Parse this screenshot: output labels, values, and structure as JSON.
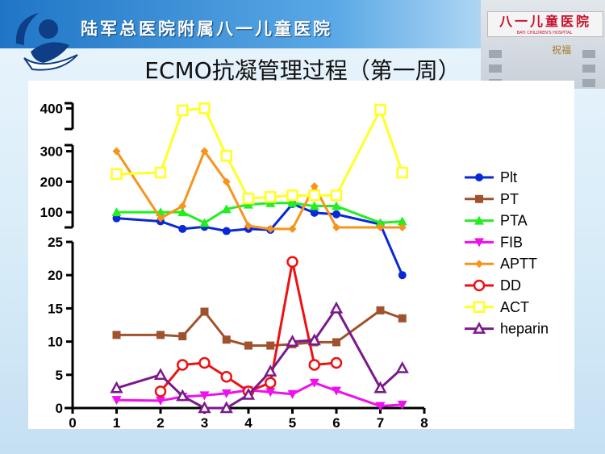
{
  "header": {
    "hospital_name": "陆军总医院附属八一儿童医院",
    "building_sign": "八一儿童医院",
    "building_sub": "BAYI CHILDREN'S HOSPITAL",
    "building_art": "祝福"
  },
  "slide": {
    "title": "ECMO抗凝管理过程（第一周）"
  },
  "chart_data": {
    "type": "line",
    "title": "",
    "xlabel": "",
    "ylabel": "",
    "xlim": [
      0,
      8
    ],
    "x_ticks": [
      "0",
      "1",
      "2",
      "3",
      "4",
      "5",
      "6",
      "7",
      "8"
    ],
    "y_segments": [
      {
        "range": [
          0,
          25
        ],
        "ticks": [
          "0",
          "5",
          "10",
          "15",
          "20",
          "25"
        ]
      },
      {
        "range": [
          50,
          320
        ],
        "ticks": [
          "100",
          "200",
          "300"
        ]
      },
      {
        "range": [
          370,
          420
        ],
        "ticks": [
          "400"
        ]
      }
    ],
    "legend_position": "right",
    "series": [
      {
        "name": "Plt",
        "color": "#0a28d6",
        "marker": "circle-filled",
        "points": [
          [
            1,
            80
          ],
          [
            2,
            70
          ],
          [
            2.5,
            45
          ],
          [
            3,
            52
          ],
          [
            3.5,
            38
          ],
          [
            4,
            45
          ],
          [
            4.5,
            42
          ],
          [
            5,
            127
          ],
          [
            5.5,
            98
          ],
          [
            6,
            93
          ],
          [
            7,
            60
          ],
          [
            7.5,
            20
          ]
        ]
      },
      {
        "name": "PT",
        "color": "#a0522d",
        "marker": "square-filled",
        "points": [
          [
            1,
            11
          ],
          [
            2,
            11
          ],
          [
            2.5,
            10.8
          ],
          [
            3,
            14.5
          ],
          [
            3.5,
            10.3
          ],
          [
            4,
            9.4
          ],
          [
            4.5,
            9.4
          ],
          [
            5,
            9.6
          ],
          [
            5.5,
            9.9
          ],
          [
            6,
            9.9
          ],
          [
            7,
            14.7
          ],
          [
            7.5,
            13.5
          ]
        ]
      },
      {
        "name": "PTA",
        "color": "#22ee22",
        "marker": "triangle-up-filled",
        "points": [
          [
            1,
            100
          ],
          [
            2,
            100
          ],
          [
            2.5,
            100
          ],
          [
            3,
            65
          ],
          [
            3.5,
            110
          ],
          [
            4,
            125
          ],
          [
            4.5,
            130
          ],
          [
            5,
            130
          ],
          [
            5.5,
            120
          ],
          [
            6,
            120
          ],
          [
            7,
            65
          ],
          [
            7.5,
            70
          ]
        ]
      },
      {
        "name": "FIB",
        "color": "#ee11ee",
        "marker": "triangle-down-filled",
        "points": [
          [
            1,
            1.2
          ],
          [
            2,
            1.1
          ],
          [
            2.5,
            1.7
          ],
          [
            3,
            1.9
          ],
          [
            3.5,
            2.2
          ],
          [
            4,
            2.7
          ],
          [
            4.5,
            2.4
          ],
          [
            5,
            2.1
          ],
          [
            5.5,
            3.8
          ],
          [
            6,
            2.6
          ],
          [
            7,
            0.3
          ],
          [
            7.5,
            0.5
          ]
        ]
      },
      {
        "name": "APTT",
        "color": "#f7941d",
        "marker": "diamond-filled",
        "points": [
          [
            1,
            300
          ],
          [
            2,
            80
          ],
          [
            2.5,
            120
          ],
          [
            3,
            300
          ],
          [
            3.5,
            200
          ],
          [
            4,
            55
          ],
          [
            4.5,
            45
          ],
          [
            5,
            45
          ],
          [
            5.5,
            185
          ],
          [
            6,
            50
          ],
          [
            7,
            50
          ],
          [
            7.5,
            50
          ]
        ]
      },
      {
        "name": "DD",
        "color": "#ee1111",
        "marker": "circle-open",
        "points": [
          [
            2,
            2.5
          ],
          [
            2.5,
            6.5
          ],
          [
            3,
            6.8
          ],
          [
            3.5,
            4.7
          ],
          [
            4,
            2.5
          ],
          [
            4.5,
            3.8
          ],
          [
            5,
            22
          ],
          [
            5.5,
            6.5
          ],
          [
            6,
            6.8
          ]
        ]
      },
      {
        "name": "ACT",
        "color": "#ffff22",
        "marker": "square-open",
        "points": [
          [
            1,
            225
          ],
          [
            2,
            230
          ],
          [
            2.5,
            392
          ],
          [
            3,
            400
          ],
          [
            3.5,
            285
          ],
          [
            4,
            145
          ],
          [
            4.5,
            150
          ],
          [
            5,
            155
          ],
          [
            5.5,
            155
          ],
          [
            6,
            155
          ],
          [
            7,
            395
          ],
          [
            7.5,
            230
          ]
        ]
      },
      {
        "name": "heparin",
        "color": "#7a1a8a",
        "marker": "triangle-up-open",
        "points": [
          [
            1,
            3
          ],
          [
            2,
            5
          ],
          [
            2.5,
            1.8
          ],
          [
            3,
            0
          ],
          [
            3.5,
            0
          ],
          [
            4,
            2
          ],
          [
            4.5,
            5.5
          ],
          [
            5,
            10
          ],
          [
            5.5,
            10.2
          ],
          [
            6,
            15
          ],
          [
            7,
            3
          ],
          [
            7.5,
            6
          ]
        ]
      }
    ]
  }
}
